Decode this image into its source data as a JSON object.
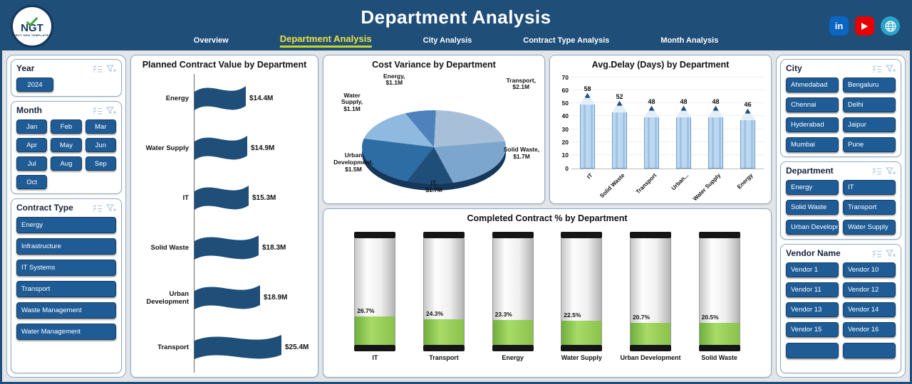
{
  "colors": {
    "header": "#1F4E79",
    "panel_border": "#8EA9C9",
    "button": "#1F5C96",
    "tab_active": "#F0E23C",
    "funnel_bar": "#1F4E79",
    "pencil_body": "#BDD7EE",
    "battery_fill": "#8CC14C",
    "linkedin": "#0A66C2",
    "youtube": "#E60000",
    "globe": "#2AA5C9"
  },
  "header": {
    "title": "Department Analysis",
    "logo": {
      "text": "NGT",
      "subtext": "NEXT GEN TEMPLATES"
    },
    "tabs": [
      {
        "label": "Overview",
        "active": false
      },
      {
        "label": "Department Analysis",
        "active": true
      },
      {
        "label": "City Analysis",
        "active": false
      },
      {
        "label": "Contract Type Analysis",
        "active": false
      },
      {
        "label": "Month Analysis",
        "active": false
      }
    ],
    "social": [
      {
        "name": "linkedin",
        "glyph": "in"
      },
      {
        "name": "youtube",
        "glyph": ""
      },
      {
        "name": "website",
        "glyph": ""
      }
    ]
  },
  "slicers": {
    "year": {
      "title": "Year",
      "options": [
        "2024"
      ]
    },
    "month": {
      "title": "Month",
      "options": [
        "Jan",
        "Feb",
        "Mar",
        "Apr",
        "May",
        "Jun",
        "Jul",
        "Aug",
        "Sep",
        "Oct"
      ]
    },
    "contract_type": {
      "title": "Contract Type",
      "options": [
        "Energy",
        "Infrastructure",
        "IT Systems",
        "Transport",
        "Waste Management",
        "Water Management"
      ]
    },
    "city": {
      "title": "City",
      "options": [
        "Ahmedabad",
        "Bengaluru",
        "Chennai",
        "Delhi",
        "Hyderabad",
        "Jaipur",
        "Mumbai",
        "Pune"
      ]
    },
    "department": {
      "title": "Department",
      "options": [
        "Energy",
        "IT",
        "Solid Waste",
        "Transport",
        "Urban Development",
        "Water Supply"
      ]
    },
    "vendor": {
      "title": "Vendor Name",
      "options": [
        "Vendor 1",
        "Vendor 10",
        "Vendor 11",
        "Vendor 12",
        "Vendor 13",
        "Vendor 14",
        "Vendor 15",
        "Vendor 16"
      ]
    }
  },
  "chart_data": [
    {
      "type": "bar",
      "subtype": "funnel-ribbon",
      "title": "Planned Contract Value by Department",
      "orientation": "horizontal",
      "categories": [
        "Energy",
        "Water Supply",
        "IT",
        "Solid Waste",
        "Urban Development",
        "Transport"
      ],
      "values": [
        14.4,
        14.9,
        15.3,
        18.3,
        18.9,
        25.4
      ],
      "labels": [
        "$14.4M",
        "$14.9M",
        "$15.3M",
        "$18.3M",
        "$18.9M",
        "$25.4M"
      ],
      "unit": "$M"
    },
    {
      "type": "pie",
      "effect": "3d",
      "title": "Cost Variance by Department",
      "categories": [
        "Energy",
        "Transport",
        "Solid Waste",
        "IT",
        "Urban Development",
        "Water Supply"
      ],
      "values": [
        1.1,
        2.1,
        1.7,
        1.7,
        1.5,
        1.1
      ],
      "labels": [
        "Energy, $1.1M",
        "Transport, $2.1M",
        "Solid Waste, $1.7M",
        "IT, $1.7M",
        "Urban Development, $1.5M",
        "Water Supply, $1.1M"
      ],
      "colors": [
        "#4F81BD",
        "#A7BFD9",
        "#7DA6CE",
        "#1F4E79",
        "#2E6DA4",
        "#8FB9DF"
      ]
    },
    {
      "type": "bar",
      "subtype": "pencil",
      "title": "Avg.Delay (Days) by Department",
      "categories": [
        "IT",
        "Solid Waste",
        "Transport",
        "Urban...",
        "Water Supply",
        "Energy"
      ],
      "values": [
        58,
        52,
        48,
        48,
        48,
        46
      ],
      "ylim": [
        0,
        70
      ],
      "yticks": [
        0,
        10,
        20,
        30,
        40,
        50,
        60,
        70
      ]
    },
    {
      "type": "bar",
      "subtype": "battery-gauge",
      "title": "Completed Contract % by Department",
      "categories": [
        "IT",
        "Transport",
        "Energy",
        "Water Supply",
        "Urban Development",
        "Solid Waste"
      ],
      "values": [
        26.7,
        24.3,
        23.3,
        22.5,
        20.7,
        20.5
      ],
      "labels": [
        "26.7%",
        "24.3%",
        "23.3%",
        "22.5%",
        "20.7%",
        "20.5%"
      ]
    }
  ]
}
